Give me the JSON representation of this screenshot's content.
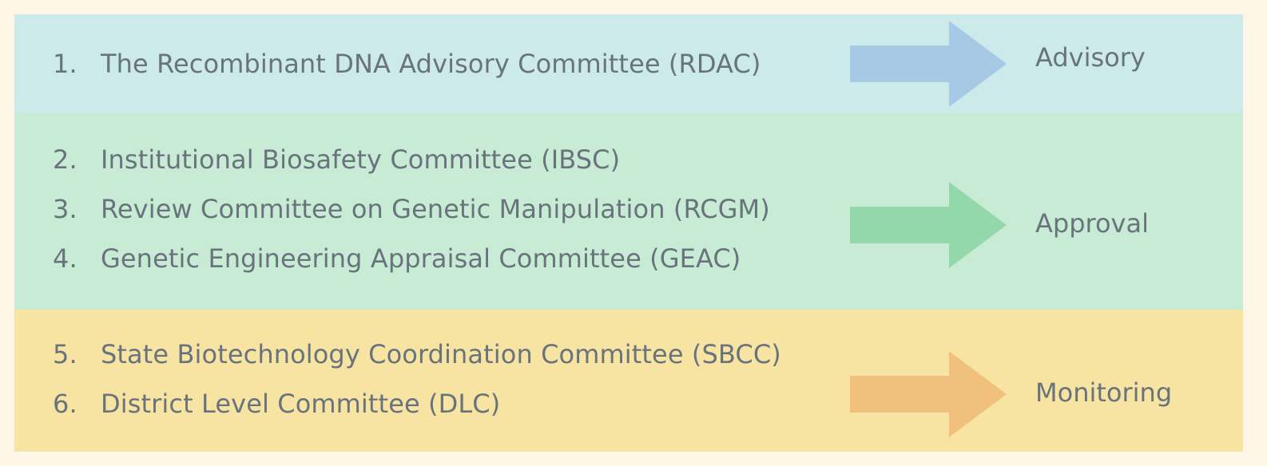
{
  "groups": [
    {
      "id": "advisory",
      "color": "#cdeaea",
      "arrow_color": "#a6c9e6",
      "label": "Advisory",
      "items": [
        {
          "num": "1.",
          "text": "The Recombinant DNA Advisory Committee (RDAC)"
        }
      ]
    },
    {
      "id": "approval",
      "color": "#c8ebd6",
      "arrow_color": "#93d8ab",
      "label": "Approval",
      "items": [
        {
          "num": "2.",
          "text": "Institutional Biosafety Committee (IBSC)"
        },
        {
          "num": "3.",
          "text": "Review Committee on Genetic Manipulation (RCGM)"
        },
        {
          "num": "4.",
          "text": "Genetic Engineering Appraisal Committee (GEAC)"
        }
      ]
    },
    {
      "id": "monitoring",
      "color": "#f7e4a3",
      "arrow_color": "#f1c07c",
      "label": "Monitoring",
      "items": [
        {
          "num": "5.",
          "text": "State Biotechnology Coordination Committee (SBCC)"
        },
        {
          "num": "6.",
          "text": "District Level Committee (DLC)"
        }
      ]
    }
  ]
}
